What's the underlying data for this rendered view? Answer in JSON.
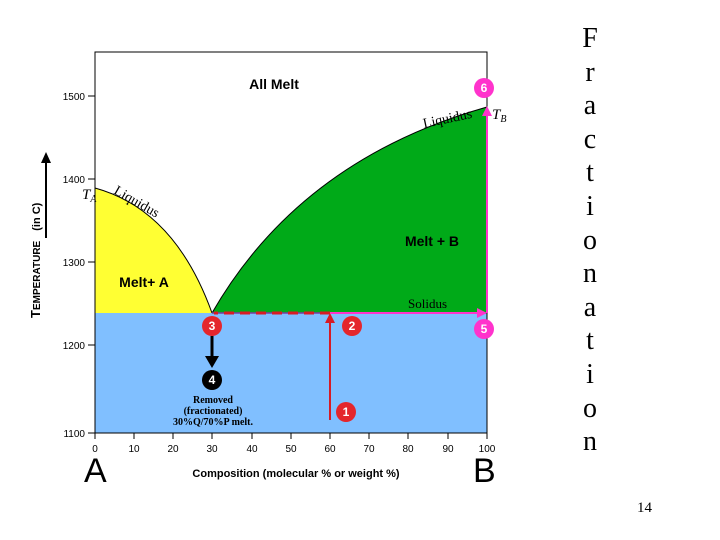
{
  "slide": {
    "title_letters": [
      "F",
      "r",
      "a",
      "c",
      "t",
      "i",
      "o",
      "n",
      "a",
      "t",
      "i",
      "o",
      "n"
    ],
    "slide_number": "14",
    "corner_left": "A",
    "corner_right": "B"
  },
  "diagram": {
    "y_axis": {
      "label_small": "T",
      "label_rest": "EMPERATURE",
      "label_unit": "(in C)",
      "ticks": [
        "1500",
        "1400",
        "1300",
        "1200",
        "1100"
      ]
    },
    "x_axis": {
      "label": "Composition  (molecular % or weight %)",
      "ticks": [
        "0",
        "10",
        "20",
        "30",
        "40",
        "50",
        "60",
        "70",
        "80",
        "90",
        "100"
      ]
    },
    "regions": {
      "all_melt": "All Melt",
      "melt_b": "Melt + B",
      "melt_a": "Melt+ A"
    },
    "curves": {
      "liquidus_left": "Liquidus",
      "liquidus_right": "Liquidus",
      "solidus": "Solidus",
      "ta": "T",
      "ta_sub": "A",
      "tb": "T",
      "tb_sub": "B"
    },
    "steps": [
      "1",
      "2",
      "3",
      "4",
      "5",
      "6"
    ],
    "removed_note": [
      "Removed",
      "(fractionated)",
      "30%Q/70%P melt."
    ],
    "colors": {
      "melt_b_fill": "#00aa18",
      "melt_a_fill": "#ffff33",
      "solid_fill": "#80bfff",
      "path_red": "#d81b24",
      "marker_red": "#e4262c",
      "marker_magenta": "#ff33cc"
    }
  }
}
